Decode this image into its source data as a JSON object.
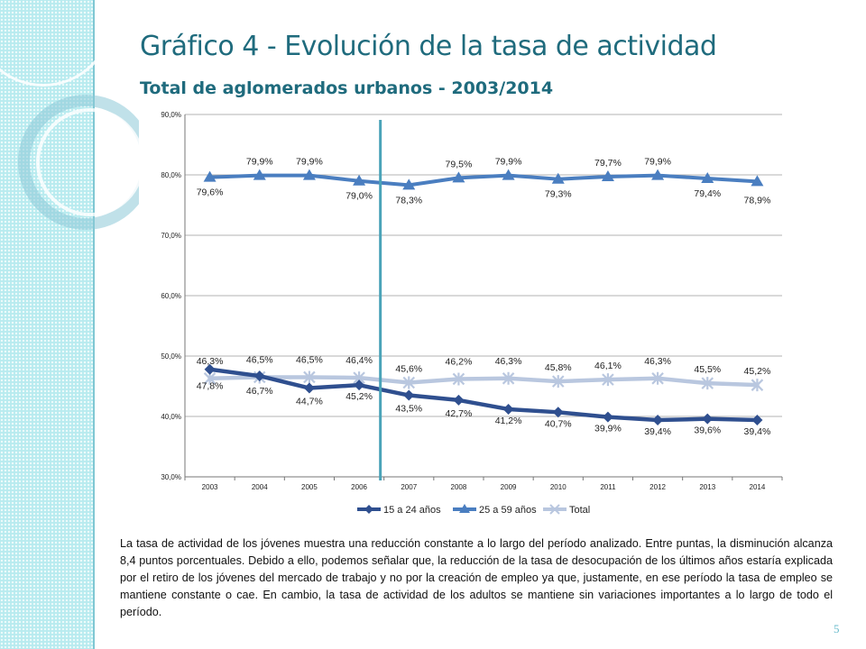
{
  "slide": {
    "title": "Gráfico 4 - Evolución de la tasa de actividad",
    "subtitle": "Total de aglomerados urbanos - 2003/2014",
    "paragraph": "La tasa de actividad de los jóvenes muestra una reducción constante a lo largo del período analizado. Entre puntas, la disminución alcanza 8,4 puntos porcentuales. Debido a ello, podemos señalar que, la reducción de la tasa de desocupación de los últimos años estaría explicada por el retiro de los jóvenes del mercado de trabajo y no por la creación de empleo ya que, justamente, en ese período la tasa de empleo se mantiene constante o cae. En cambio, la tasa de actividad de los adultos se mantiene sin variaciones importantes a lo largo de todo el período.",
    "page_number": "5"
  },
  "colors": {
    "title": "#1f6b7d",
    "sidebar": "#b8ebef",
    "series_young": "#2f4f8f",
    "series_adult": "#4a7ec0",
    "series_total": "#b9c7df",
    "divider": "#4aa3b8"
  },
  "chart_data": {
    "type": "line",
    "title": "",
    "xlabel": "",
    "ylabel": "",
    "x": [
      "2003",
      "2004",
      "2005",
      "2006",
      "2007",
      "2008",
      "2009",
      "2010",
      "2011",
      "2012",
      "2013",
      "2014"
    ],
    "ylim": [
      30,
      90
    ],
    "yticks": [
      "30,0%",
      "40,0%",
      "50,0%",
      "60,0%",
      "70,0%",
      "80,0%",
      "90,0%"
    ],
    "grid": true,
    "legend_position": "bottom",
    "vertical_marker_between": [
      "2006",
      "2007"
    ],
    "series": [
      {
        "name": "15 a 24 años",
        "marker": "diamond",
        "values": [
          47.8,
          46.7,
          44.7,
          45.2,
          43.5,
          42.7,
          41.2,
          40.7,
          39.9,
          39.4,
          39.6,
          39.4
        ],
        "labels": [
          "47,8%",
          "46,7%",
          "44,7%",
          "45,2%",
          "43,5%",
          "42,7%",
          "41,2%",
          "40,7%",
          "39,9%",
          "39,4%",
          "39,6%",
          "39,4%"
        ]
      },
      {
        "name": "25 a 59 años",
        "marker": "triangle",
        "values": [
          79.6,
          79.9,
          79.9,
          79.0,
          78.3,
          79.5,
          79.9,
          79.3,
          79.7,
          79.9,
          79.4,
          78.9
        ],
        "labels": [
          "79,6%",
          "79,9%",
          "79,9%",
          "79,0%",
          "78,3%",
          "79,5%",
          "79,9%",
          "79,3%",
          "79,7%",
          "79,9%",
          "79,4%",
          "78,9%"
        ]
      },
      {
        "name": "Total",
        "marker": "star",
        "values": [
          46.3,
          46.5,
          46.5,
          46.4,
          45.6,
          46.2,
          46.3,
          45.8,
          46.1,
          46.3,
          45.5,
          45.2
        ],
        "labels": [
          "46,3%",
          "46,5%",
          "46,5%",
          "46,4%",
          "45,6%",
          "46,2%",
          "46,3%",
          "45,8%",
          "46,1%",
          "46,3%",
          "45,5%",
          "45,2%"
        ]
      }
    ]
  }
}
